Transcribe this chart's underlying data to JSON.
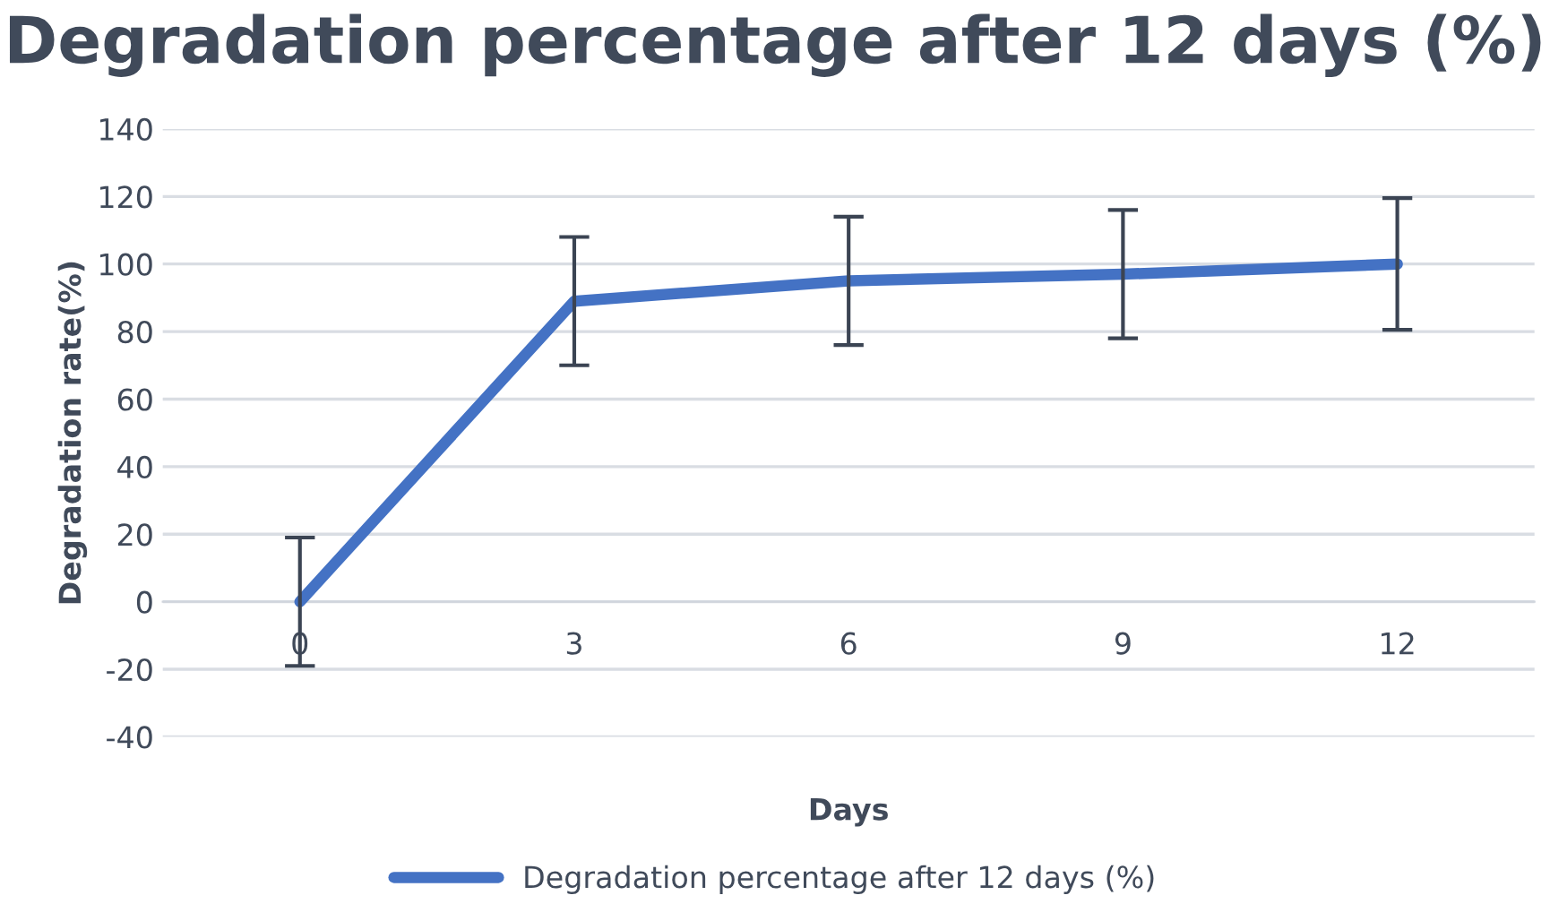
{
  "chart_data": {
    "type": "line",
    "title": "Degradation percentage after 12 days (%)",
    "xlabel": "Days",
    "ylabel": "Degradation rate(%)",
    "categories": [
      "0",
      "3",
      "6",
      "9",
      "12"
    ],
    "series": [
      {
        "name": "Degradation percentage after 12 days (%)",
        "color": "#4472c4",
        "values": [
          0,
          89,
          95,
          97,
          100
        ],
        "errors": [
          19,
          19,
          19,
          19,
          19.5
        ]
      }
    ],
    "ylim": [
      -40,
      140
    ],
    "yticks": [
      -40,
      -20,
      0,
      20,
      40,
      60,
      80,
      100,
      120,
      140
    ],
    "grid": "y",
    "legend": "bottom",
    "marker": "none",
    "line_style": "solid"
  }
}
